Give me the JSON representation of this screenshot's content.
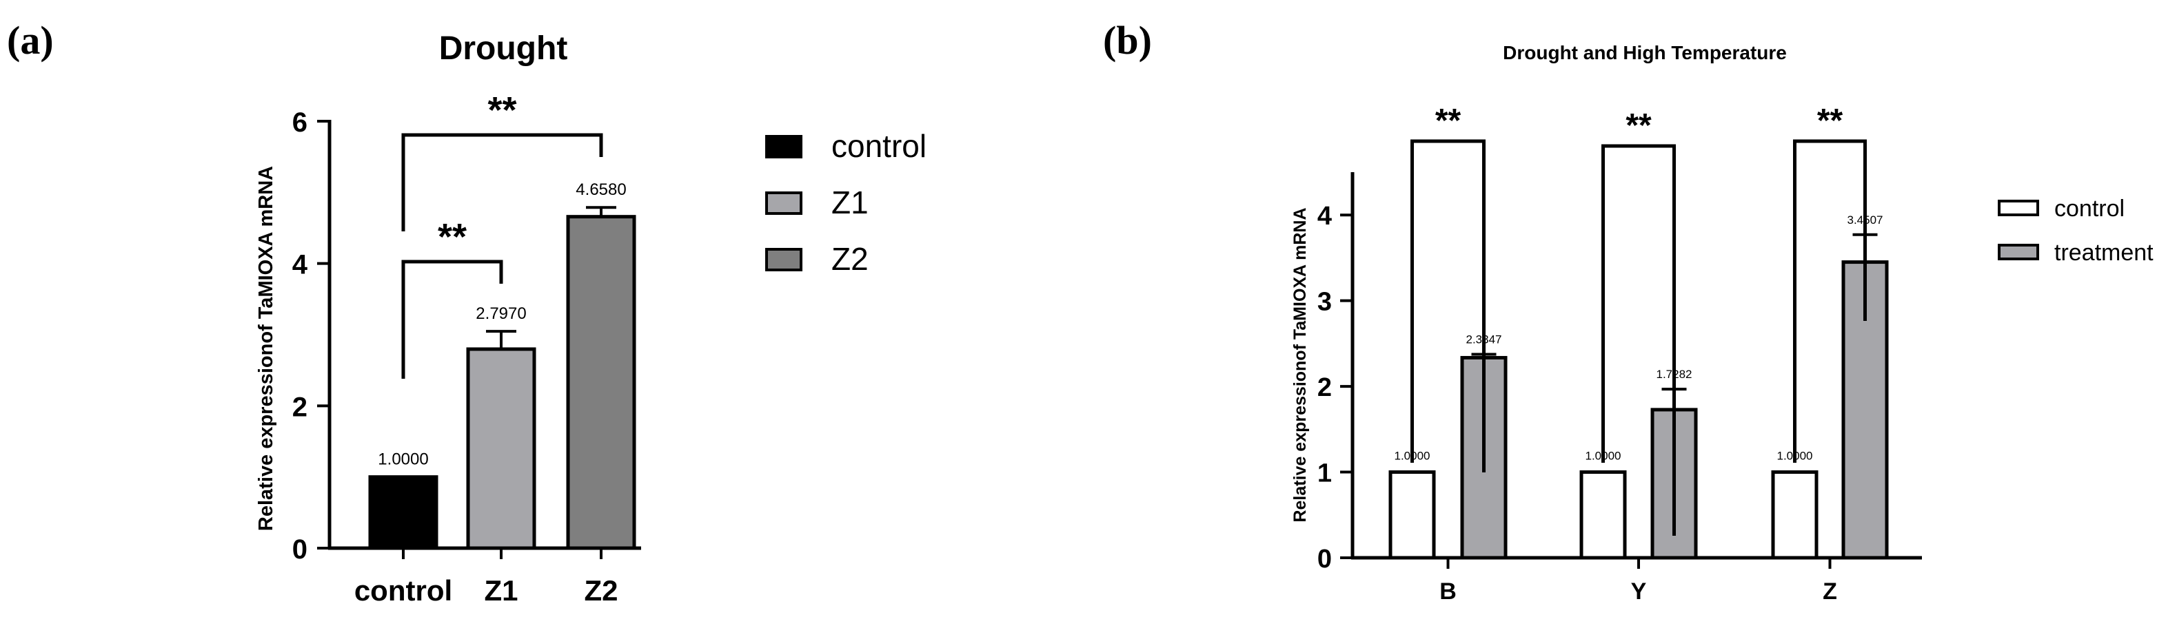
{
  "chart_data": [
    {
      "panel_label": "(a)",
      "type": "bar",
      "title": "Drought",
      "xlabel": "",
      "ylabel": "Relative expressionof TaMIOXA mRNA",
      "categories": [
        "control",
        "Z1",
        "Z2"
      ],
      "values": [
        1.0,
        2.797,
        4.658
      ],
      "errors": [
        0,
        0.25,
        0.13
      ],
      "value_labels": [
        "1.0000",
        "2.7970",
        "4.6580"
      ],
      "bar_colors": [
        "#000000",
        "#a6a6aa",
        "#7f7f7f"
      ],
      "ylim": [
        0,
        6
      ],
      "yticks": [
        "0",
        "2",
        "4",
        "6"
      ],
      "legend": [
        "control",
        "Z1",
        "Z2"
      ],
      "legend_position": "right",
      "significance": [
        {
          "from": "control",
          "to": "Z1",
          "label": "**"
        },
        {
          "from": "control",
          "to": "Z2",
          "label": "**"
        }
      ]
    },
    {
      "panel_label": "(b)",
      "type": "bar",
      "title": "Drought and High Temperature",
      "xlabel": "",
      "ylabel": "Relative expressionof TaMIOXA mRNA",
      "categories": [
        "B",
        "Y",
        "Z"
      ],
      "series": [
        {
          "name": "control",
          "values": [
            1.0,
            1.0,
            1.0
          ],
          "errors": [
            0,
            0,
            0
          ],
          "value_labels": [
            "1.0000",
            "1.0000",
            "1.0000"
          ],
          "color": "#ffffff"
        },
        {
          "name": "treatment",
          "values": [
            2.3347,
            1.7282,
            3.4507
          ],
          "errors": [
            0.04,
            0.24,
            0.32
          ],
          "value_labels": [
            "2.3347",
            "1.7282",
            "3.4507"
          ],
          "color": "#a6a6aa"
        }
      ],
      "ylim": [
        0,
        4.5
      ],
      "yticks": [
        "0",
        "1",
        "2",
        "3",
        "4"
      ],
      "legend_position": "right",
      "significance": [
        {
          "category": "B",
          "label": "**"
        },
        {
          "category": "Y",
          "label": "**"
        },
        {
          "category": "Z",
          "label": "**"
        }
      ]
    }
  ]
}
